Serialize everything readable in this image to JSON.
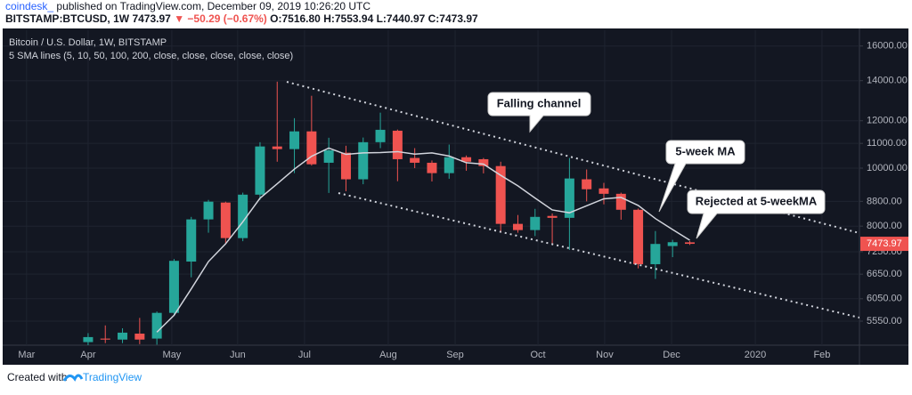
{
  "header": {
    "author": "coindesk_",
    "published": "published on TradingView.com, December 09, 2019 10:26:20 UTC",
    "symbol": "BITSTAMP:BTCUSD, 1W",
    "last": "7473.97",
    "change": "▼ −50.29 (−0.67%)",
    "o": "O:7516.80",
    "h": "H:7553.94",
    "l": "L:7440.97",
    "c": "C:7473.97"
  },
  "chart_data": {
    "type": "candlestick",
    "title": "Bitcoin / U.S. Dollar, 1W, BITSTAMP",
    "subtitle": "5 SMA lines (5, 10, 50, 100, 200, close, close, close, close, close)",
    "categories": [
      null,
      null,
      null,
      null,
      null,
      null,
      null,
      null,
      null,
      null,
      null,
      null,
      null,
      null,
      null,
      null,
      null,
      null,
      null,
      null,
      null,
      null,
      null,
      null,
      null,
      null,
      null,
      null,
      null,
      null,
      null,
      null,
      null,
      null,
      null,
      null
    ],
    "open": [
      5120,
      5190,
      5170,
      5290,
      5190,
      5730,
      6980,
      8210,
      8760,
      7640,
      9030,
      10870,
      10760,
      11520,
      10210,
      10610,
      9580,
      11050,
      11550,
      10400,
      10210,
      9810,
      10430,
      10350,
      10080,
      8070,
      7880,
      8320,
      8260,
      9580,
      9250,
      9060,
      8520,
      6910,
      7410,
      7516.8
    ],
    "high": [
      5300,
      5460,
      5400,
      5620,
      5760,
      7050,
      8290,
      8850,
      8790,
      9100,
      11050,
      13950,
      12120,
      13210,
      11240,
      10900,
      11250,
      12380,
      11600,
      10800,
      10300,
      10950,
      10500,
      10400,
      10250,
      8350,
      8550,
      8400,
      10400,
      9950,
      9450,
      9100,
      8560,
      7850,
      7590,
      7553.94
    ],
    "low": [
      5060,
      5100,
      5100,
      5080,
      5070,
      5690,
      6570,
      7800,
      7470,
      7550,
      8850,
      10250,
      9810,
      10100,
      9090,
      9150,
      9400,
      10800,
      9510,
      10000,
      9500,
      9600,
      9900,
      9800,
      7800,
      7800,
      7700,
      7460,
      7300,
      8800,
      8700,
      8200,
      6800,
      6530,
      7100,
      7440.97
    ],
    "close": [
      5220,
      5170,
      5310,
      5170,
      5730,
      7000,
      8210,
      8790,
      7640,
      9030,
      10870,
      10760,
      11520,
      10150,
      10710,
      9580,
      11050,
      11590,
      10350,
      10210,
      9810,
      10430,
      10250,
      10080,
      8070,
      7880,
      8290,
      8260,
      9610,
      9220,
      9060,
      8520,
      6910,
      7470,
      7520,
      7473.97
    ],
    "up_color": "#26a69a",
    "down_color": "#ef5350",
    "ma": {
      "color": "#d1d4dc",
      "values": [
        null,
        null,
        null,
        null,
        5320,
        5676,
        6284,
        6980,
        7474,
        8134,
        8908,
        9418,
        9964,
        10466,
        10802,
        10544,
        10602,
        10616,
        10656,
        10556,
        10602,
        10478,
        10210,
        10156,
        9728,
        9342,
        8914,
        8516,
        8422,
        8652,
        8888,
        8934,
        8664,
        8236,
        7896,
        7579
      ]
    },
    "log": true,
    "ylim": [
      5060,
      17000
    ],
    "yticks": [
      {
        "value": 5550,
        "label": "5550.00"
      },
      {
        "value": 6050,
        "label": "6050.00"
      },
      {
        "value": 6650,
        "label": "6650.00"
      },
      {
        "value": 7250,
        "label": "7250.00"
      },
      {
        "value": 8000,
        "label": "8000.00"
      },
      {
        "value": 8800,
        "label": "8800.00"
      },
      {
        "value": 10000,
        "label": "10000.00"
      },
      {
        "value": 11000,
        "label": "11000.00"
      },
      {
        "value": 12000,
        "label": "12000.00"
      },
      {
        "value": 14000,
        "label": "14000.00"
      },
      {
        "value": 16000,
        "label": "16000.00"
      }
    ],
    "xlim": [
      -4.97,
      44.87
    ],
    "xticks": [
      {
        "value": -3.58,
        "label": "Mar"
      },
      {
        "value": 0,
        "label": "Apr"
      },
      {
        "value": 4.87,
        "label": "May"
      },
      {
        "value": 8.7,
        "label": "Jun"
      },
      {
        "value": 12.59,
        "label": "Jul"
      },
      {
        "value": 17.46,
        "label": "Aug"
      },
      {
        "value": 21.35,
        "label": "Sep"
      },
      {
        "value": 26.17,
        "label": "Oct"
      },
      {
        "value": 30.05,
        "label": "Nov"
      },
      {
        "value": 33.94,
        "label": "Dec"
      },
      {
        "value": 38.81,
        "label": "2020"
      },
      {
        "value": 42.69,
        "label": "Feb"
      }
    ],
    "grid": true,
    "last_price_label": "7473.97",
    "annotations": [
      "Falling channel",
      "5-week MA",
      "Rejected at 5-weekMA"
    ]
  },
  "footer": {
    "created": "Created with",
    "brand": "TradingView"
  }
}
